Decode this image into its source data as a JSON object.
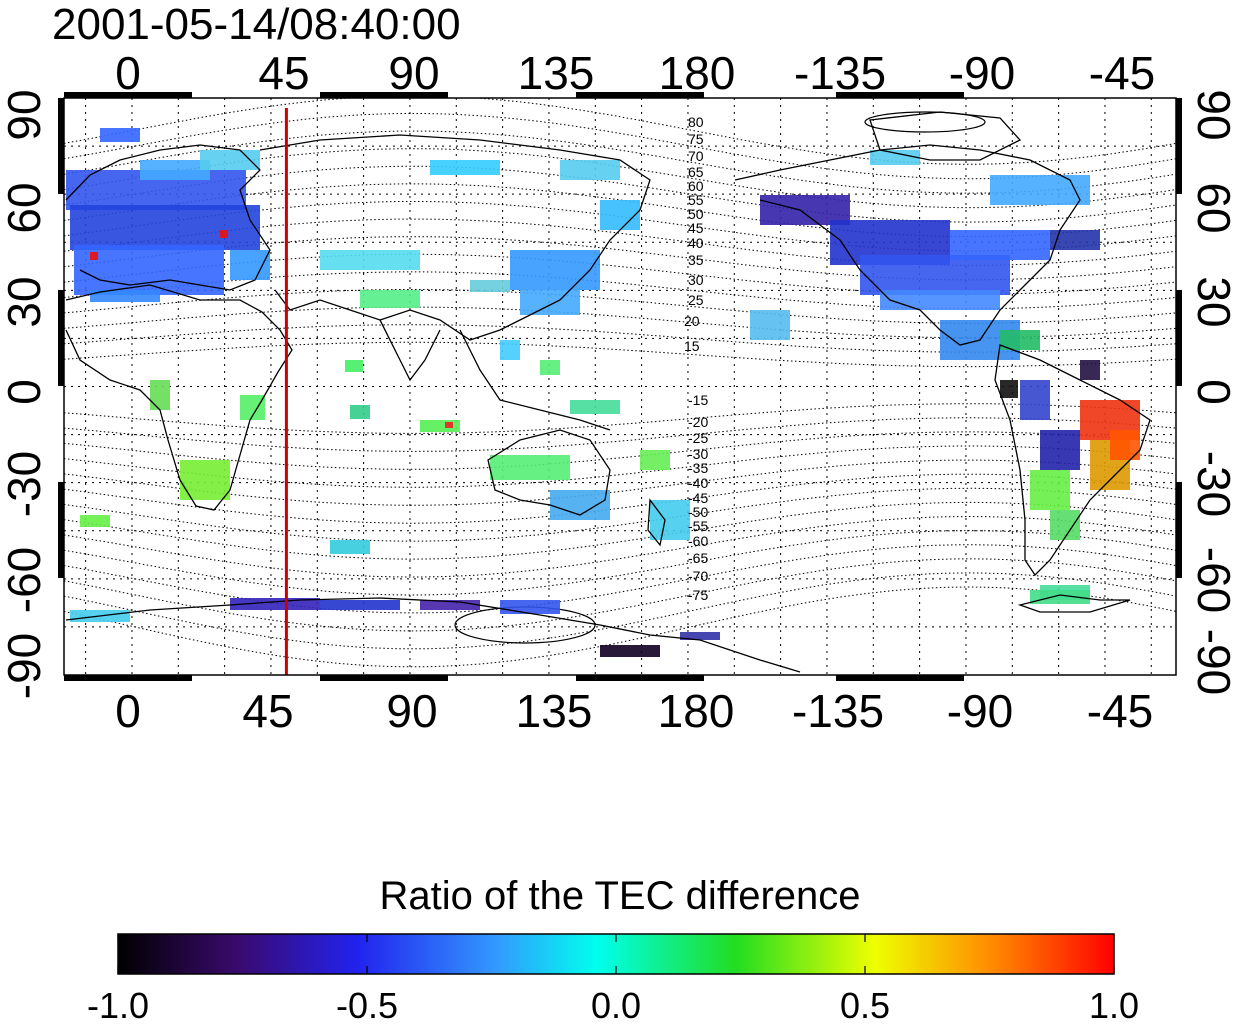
{
  "title": "2001-05-14/08:40:00",
  "lon_ticks": [
    "0",
    "45",
    "90",
    "135",
    "180",
    "-135",
    "-90",
    "-45"
  ],
  "lat_ticks": [
    "90",
    "60",
    "30",
    "0",
    "-30",
    "-60",
    "-90"
  ],
  "contour_labels_north": [
    "80",
    "75",
    "70",
    "65",
    "60",
    "55",
    "50",
    "45",
    "40",
    "35",
    "30",
    "25",
    "20",
    "15"
  ],
  "contour_labels_south": [
    "-15",
    "-20",
    "-25",
    "-30",
    "-35",
    "-40",
    "-45",
    "-50",
    "-55",
    "-60",
    "-65",
    "-70",
    "-75"
  ],
  "meridian_marker": {
    "longitude": 50,
    "color": "#cc0000"
  },
  "colorbar": {
    "title": "Ratio of the TEC difference",
    "min": -1.0,
    "max": 1.0,
    "ticks": [
      "-1.0",
      "-0.5",
      "0.0",
      "0.5",
      "1.0"
    ],
    "colormap": "rainbow (black-purple-blue-cyan-green-yellow-red)"
  },
  "colors": {
    "background": "#ffffff",
    "frame": "#000000",
    "coast": "#000000",
    "grid": "#000000",
    "marker": "#cc0000"
  }
}
